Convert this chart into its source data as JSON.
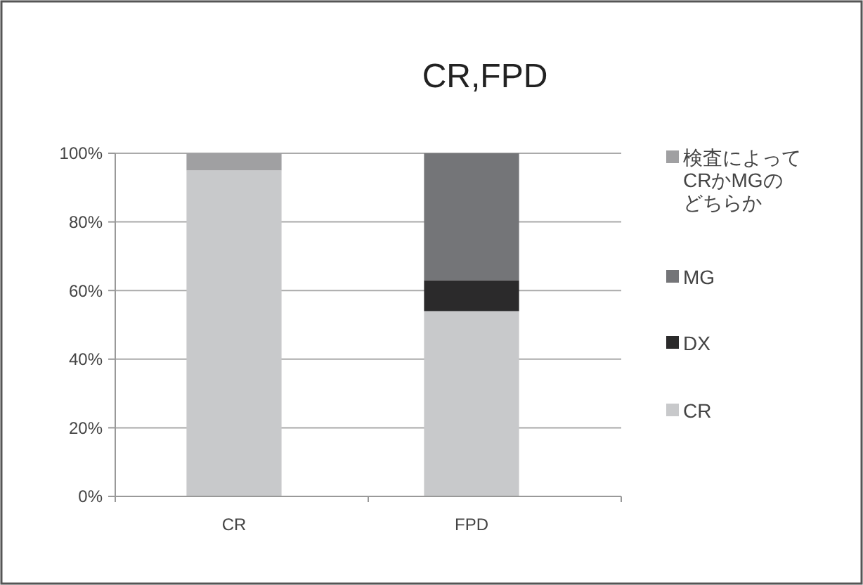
{
  "chart_data": {
    "type": "bar",
    "title": "CR,FPD",
    "categories": [
      "CR",
      "FPD"
    ],
    "stacked": true,
    "series": [
      {
        "name": "CR",
        "color": "#c8c9cb",
        "values": [
          95,
          54
        ]
      },
      {
        "name": "DX",
        "color": "#2b2a2b",
        "values": [
          0,
          9
        ]
      },
      {
        "name": "MG",
        "color": "#747578",
        "values": [
          0,
          37
        ]
      },
      {
        "name": "検査によってCRかMGのどちらか",
        "color": "#a0a0a2",
        "values": [
          5,
          0
        ]
      }
    ],
    "ylim": [
      0,
      100
    ],
    "yticks": [
      {
        "value": 0,
        "label": "0%"
      },
      {
        "value": 20,
        "label": "20%"
      },
      {
        "value": 40,
        "label": "40%"
      },
      {
        "value": 60,
        "label": "60%"
      },
      {
        "value": 80,
        "label": "80%"
      },
      {
        "value": 100,
        "label": "100%"
      }
    ],
    "grid": "y",
    "legend": "right"
  }
}
